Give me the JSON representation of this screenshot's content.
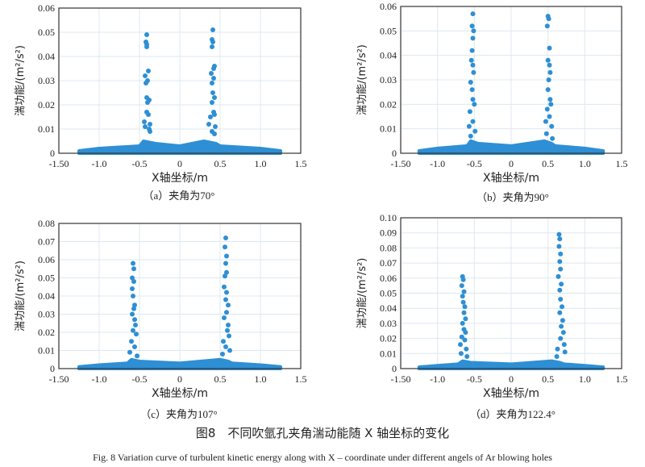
{
  "figure_title": "图8　不同吹氩孔夹角湍动能随 X 轴坐标的变化",
  "figure_caption_en": "Fig. 8   Variation curve of turbulent kinetic energy along with X – coordinate under different angels of Ar blowing holes",
  "colors": {
    "points": "#2e8fd4",
    "axis": "#333333",
    "grid": "#dde8f0"
  },
  "chart_data": [
    {
      "type": "scatter",
      "caption": "（a）夹角为70°",
      "xlabel": "X轴坐标/m",
      "ylabel": "湍功能/(m²/s²)",
      "xlim": [
        -1.5,
        1.5
      ],
      "ylim": [
        0,
        0.06
      ],
      "grid": true,
      "xticks": [
        "-1.50",
        "-1.0",
        "-0.5",
        "0",
        "0.5",
        "1.0",
        "1.5"
      ],
      "yticks": [
        "0",
        "0.01",
        "0.02",
        "0.03",
        "0.04",
        "0.05",
        "0.06"
      ],
      "baseline_envelope": [
        [
          -1.25,
          0.001
        ],
        [
          -1.0,
          0.002
        ],
        [
          -0.5,
          0.003
        ],
        [
          -0.45,
          0.005
        ],
        [
          -0.3,
          0.004
        ],
        [
          0,
          0.003
        ],
        [
          0.3,
          0.005
        ],
        [
          0.45,
          0.004
        ],
        [
          0.5,
          0.003
        ],
        [
          1.0,
          0.002
        ],
        [
          1.25,
          0.001
        ]
      ],
      "points": [
        [
          -0.41,
          0.049
        ],
        [
          -0.42,
          0.046
        ],
        [
          -0.41,
          0.045
        ],
        [
          -0.41,
          0.044
        ],
        [
          -0.39,
          0.034
        ],
        [
          -0.43,
          0.032
        ],
        [
          -0.4,
          0.03
        ],
        [
          -0.42,
          0.029
        ],
        [
          -0.41,
          0.023
        ],
        [
          -0.38,
          0.022
        ],
        [
          -0.4,
          0.021
        ],
        [
          -0.41,
          0.017
        ],
        [
          -0.39,
          0.016
        ],
        [
          -0.44,
          0.013
        ],
        [
          -0.37,
          0.012
        ],
        [
          -0.43,
          0.011
        ],
        [
          -0.38,
          0.01
        ],
        [
          -0.37,
          0.009
        ],
        [
          0.41,
          0.051
        ],
        [
          0.4,
          0.047
        ],
        [
          0.41,
          0.046
        ],
        [
          0.4,
          0.044
        ],
        [
          0.43,
          0.036
        ],
        [
          0.42,
          0.035
        ],
        [
          0.39,
          0.033
        ],
        [
          0.42,
          0.031
        ],
        [
          0.4,
          0.029
        ],
        [
          0.41,
          0.025
        ],
        [
          0.43,
          0.023
        ],
        [
          0.4,
          0.021
        ],
        [
          0.42,
          0.017
        ],
        [
          0.43,
          0.016
        ],
        [
          0.38,
          0.015
        ],
        [
          0.36,
          0.012
        ],
        [
          0.44,
          0.011
        ],
        [
          0.4,
          0.009
        ],
        [
          0.43,
          0.008
        ]
      ]
    },
    {
      "type": "scatter",
      "caption": "（b）夹角为90°",
      "xlabel": "X轴坐标/m",
      "ylabel": "湍功能/(m²/s²)",
      "xlim": [
        -1.5,
        1.5
      ],
      "ylim": [
        0,
        0.06
      ],
      "grid": true,
      "xticks": [
        "-1.50",
        "-1.0",
        "-0.5",
        "0",
        "0.5",
        "1.0",
        "1.5"
      ],
      "yticks": [
        "0",
        "0.01",
        "0.02",
        "0.03",
        "0.04",
        "0.05",
        "0.06"
      ],
      "baseline_envelope": [
        [
          -1.25,
          0.001
        ],
        [
          -1.0,
          0.002
        ],
        [
          -0.6,
          0.003
        ],
        [
          -0.55,
          0.005
        ],
        [
          -0.45,
          0.004
        ],
        [
          0,
          0.003
        ],
        [
          0.45,
          0.005
        ],
        [
          0.55,
          0.004
        ],
        [
          0.6,
          0.003
        ],
        [
          1.0,
          0.002
        ],
        [
          1.25,
          0.001
        ]
      ],
      "points": [
        [
          -0.52,
          0.057
        ],
        [
          -0.53,
          0.052
        ],
        [
          -0.51,
          0.05
        ],
        [
          -0.52,
          0.047
        ],
        [
          -0.53,
          0.042
        ],
        [
          -0.54,
          0.038
        ],
        [
          -0.52,
          0.036
        ],
        [
          -0.51,
          0.033
        ],
        [
          -0.55,
          0.029
        ],
        [
          -0.53,
          0.026
        ],
        [
          -0.52,
          0.022
        ],
        [
          -0.5,
          0.02
        ],
        [
          -0.56,
          0.017
        ],
        [
          -0.52,
          0.013
        ],
        [
          -0.57,
          0.011
        ],
        [
          -0.49,
          0.009
        ],
        [
          -0.55,
          0.007
        ],
        [
          0.5,
          0.056
        ],
        [
          0.51,
          0.055
        ],
        [
          0.49,
          0.052
        ],
        [
          0.52,
          0.043
        ],
        [
          0.5,
          0.038
        ],
        [
          0.52,
          0.036
        ],
        [
          0.53,
          0.033
        ],
        [
          0.51,
          0.03
        ],
        [
          0.5,
          0.026
        ],
        [
          0.53,
          0.022
        ],
        [
          0.54,
          0.02
        ],
        [
          0.49,
          0.018
        ],
        [
          0.52,
          0.015
        ],
        [
          0.47,
          0.013
        ],
        [
          0.55,
          0.011
        ],
        [
          0.48,
          0.008
        ],
        [
          0.56,
          0.006
        ]
      ]
    },
    {
      "type": "scatter",
      "caption": "（c）夹角为107°",
      "xlabel": "X轴坐标/m",
      "ylabel": "湍功能/(m²/s²)",
      "xlim": [
        -1.5,
        1.5
      ],
      "ylim": [
        0,
        0.08
      ],
      "grid": true,
      "xticks": [
        "-1.50",
        "-1.0",
        "-0.5",
        "0",
        "0.5",
        "1.0",
        "1.5"
      ],
      "yticks": [
        "0",
        "0.01",
        "0.02",
        "0.03",
        "0.04",
        "0.05",
        "0.06",
        "0.07",
        "0.08"
      ],
      "baseline_envelope": [
        [
          -1.25,
          0.001
        ],
        [
          -1.0,
          0.002
        ],
        [
          -0.65,
          0.003
        ],
        [
          -0.6,
          0.005
        ],
        [
          -0.5,
          0.004
        ],
        [
          0,
          0.003
        ],
        [
          0.5,
          0.005
        ],
        [
          0.6,
          0.004
        ],
        [
          0.65,
          0.003
        ],
        [
          1.0,
          0.002
        ],
        [
          1.25,
          0.001
        ]
      ],
      "points": [
        [
          -0.58,
          0.058
        ],
        [
          -0.57,
          0.055
        ],
        [
          -0.59,
          0.05
        ],
        [
          -0.57,
          0.048
        ],
        [
          -0.59,
          0.044
        ],
        [
          -0.58,
          0.04
        ],
        [
          -0.56,
          0.035
        ],
        [
          -0.57,
          0.033
        ],
        [
          -0.59,
          0.03
        ],
        [
          -0.56,
          0.027
        ],
        [
          -0.55,
          0.024
        ],
        [
          -0.58,
          0.021
        ],
        [
          -0.54,
          0.019
        ],
        [
          -0.6,
          0.015
        ],
        [
          -0.56,
          0.012
        ],
        [
          -0.62,
          0.009
        ],
        [
          -0.53,
          0.007
        ],
        [
          0.57,
          0.072
        ],
        [
          0.56,
          0.067
        ],
        [
          0.58,
          0.062
        ],
        [
          0.57,
          0.058
        ],
        [
          0.58,
          0.053
        ],
        [
          0.56,
          0.051
        ],
        [
          0.55,
          0.045
        ],
        [
          0.58,
          0.042
        ],
        [
          0.57,
          0.038
        ],
        [
          0.6,
          0.035
        ],
        [
          0.58,
          0.031
        ],
        [
          0.55,
          0.028
        ],
        [
          0.6,
          0.024
        ],
        [
          0.59,
          0.021
        ],
        [
          0.61,
          0.018
        ],
        [
          0.54,
          0.015
        ],
        [
          0.57,
          0.012
        ],
        [
          0.62,
          0.01
        ],
        [
          0.53,
          0.008
        ]
      ]
    },
    {
      "type": "scatter",
      "caption": "（d）夹角为122.4°",
      "xlabel": "X轴坐标/m",
      "ylabel": "湍功能/(m²/s²)",
      "xlim": [
        -1.5,
        1.5
      ],
      "ylim": [
        0,
        0.1
      ],
      "grid": true,
      "xticks": [
        "-1.50",
        "-1.0",
        "-0.5",
        "0",
        "0.5",
        "1.0",
        "1.5"
      ],
      "yticks": [
        "0",
        "0.01",
        "0.02",
        "0.03",
        "0.04",
        "0.05",
        "0.06",
        "0.07",
        "0.08",
        "0.09",
        "0.10"
      ],
      "baseline_envelope": [
        [
          -1.25,
          0.001
        ],
        [
          -1.0,
          0.002
        ],
        [
          -0.72,
          0.003
        ],
        [
          -0.66,
          0.005
        ],
        [
          -0.55,
          0.004
        ],
        [
          0,
          0.003
        ],
        [
          0.55,
          0.005
        ],
        [
          0.66,
          0.004
        ],
        [
          0.72,
          0.003
        ],
        [
          1.0,
          0.002
        ],
        [
          1.25,
          0.001
        ]
      ],
      "points": [
        [
          -0.66,
          0.061
        ],
        [
          -0.65,
          0.059
        ],
        [
          -0.67,
          0.055
        ],
        [
          -0.64,
          0.051
        ],
        [
          -0.66,
          0.048
        ],
        [
          -0.65,
          0.044
        ],
        [
          -0.63,
          0.041
        ],
        [
          -0.64,
          0.037
        ],
        [
          -0.62,
          0.033
        ],
        [
          -0.66,
          0.03
        ],
        [
          -0.64,
          0.026
        ],
        [
          -0.62,
          0.024
        ],
        [
          -0.67,
          0.021
        ],
        [
          -0.63,
          0.019
        ],
        [
          -0.69,
          0.016
        ],
        [
          -0.61,
          0.013
        ],
        [
          -0.68,
          0.01
        ],
        [
          -0.6,
          0.008
        ],
        [
          0.65,
          0.089
        ],
        [
          0.66,
          0.086
        ],
        [
          0.65,
          0.081
        ],
        [
          0.67,
          0.076
        ],
        [
          0.66,
          0.071
        ],
        [
          0.67,
          0.066
        ],
        [
          0.64,
          0.061
        ],
        [
          0.68,
          0.056
        ],
        [
          0.66,
          0.052
        ],
        [
          0.67,
          0.046
        ],
        [
          0.69,
          0.041
        ],
        [
          0.66,
          0.037
        ],
        [
          0.7,
          0.032
        ],
        [
          0.68,
          0.028
        ],
        [
          0.71,
          0.024
        ],
        [
          0.67,
          0.02
        ],
        [
          0.72,
          0.016
        ],
        [
          0.63,
          0.013
        ],
        [
          0.73,
          0.011
        ],
        [
          0.62,
          0.008
        ]
      ]
    }
  ]
}
